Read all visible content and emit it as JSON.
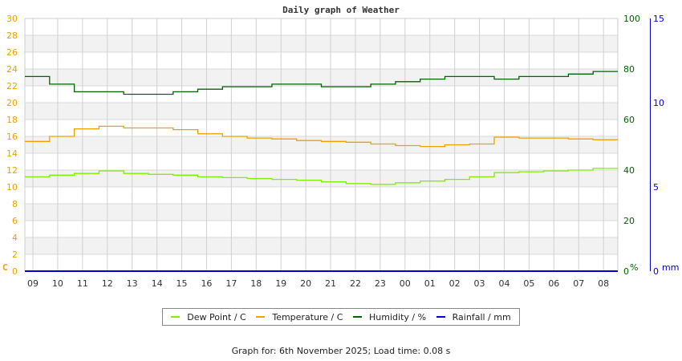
{
  "chart_data": {
    "type": "line",
    "title": "Daily graph of Weather",
    "xlabel": "",
    "x": [
      "09",
      "10",
      "11",
      "12",
      "13",
      "14",
      "15",
      "16",
      "17",
      "18",
      "19",
      "20",
      "21",
      "22",
      "23",
      "00",
      "01",
      "02",
      "03",
      "04",
      "05",
      "06",
      "07",
      "08"
    ],
    "axes": {
      "left": {
        "label": "C",
        "range": [
          0,
          30
        ],
        "ticks": [
          0,
          2,
          4,
          6,
          8,
          10,
          12,
          14,
          16,
          18,
          20,
          22,
          24,
          26,
          28,
          30
        ],
        "color": "#f0a000"
      },
      "right_humidity": {
        "label": "%",
        "range": [
          0,
          100
        ],
        "ticks": [
          0,
          20,
          40,
          60,
          80,
          100
        ],
        "color": "#006400"
      },
      "right_rain": {
        "label": "mm",
        "range": [
          0,
          15
        ],
        "ticks": [
          0,
          5,
          10,
          15
        ],
        "color": "#0000cc"
      }
    },
    "grid": true,
    "legend_position": "bottom",
    "series": [
      {
        "name": "Dew Point / C",
        "color": "#80ee00",
        "axis": "left",
        "values": [
          11.2,
          11.4,
          11.6,
          11.9,
          11.6,
          11.5,
          11.4,
          11.2,
          11.1,
          11.0,
          10.9,
          10.8,
          10.6,
          10.4,
          10.3,
          10.5,
          10.7,
          10.9,
          11.2,
          11.7,
          11.8,
          11.9,
          12.0,
          12.2
        ]
      },
      {
        "name": "Temperature / C",
        "color": "#f0a000",
        "axis": "left",
        "values": [
          15.4,
          16.0,
          16.9,
          17.2,
          17.0,
          17.0,
          16.8,
          16.3,
          16.0,
          15.8,
          15.7,
          15.5,
          15.4,
          15.3,
          15.1,
          14.9,
          14.8,
          15.0,
          15.1,
          15.9,
          15.8,
          15.8,
          15.7,
          15.6
        ]
      },
      {
        "name": "Humidity / %",
        "color": "#006400",
        "axis": "right_humidity",
        "values": [
          77,
          74,
          71,
          71,
          70,
          70,
          71,
          72,
          73,
          73,
          74,
          74,
          73,
          73,
          74,
          75,
          76,
          77,
          77,
          76,
          77,
          77,
          78,
          79
        ]
      },
      {
        "name": "Rainfall / mm",
        "color": "#0000cc",
        "axis": "right_rain",
        "values": [
          0,
          0,
          0,
          0,
          0,
          0,
          0,
          0,
          0,
          0,
          0,
          0,
          0,
          0,
          0,
          0,
          0,
          0,
          0,
          0,
          0,
          0,
          0,
          0
        ]
      }
    ]
  },
  "legend": {
    "items": [
      {
        "label": "Dew Point / C",
        "color": "#80ee00"
      },
      {
        "label": "Temperature / C",
        "color": "#f0a000"
      },
      {
        "label": "Humidity / %",
        "color": "#006400"
      },
      {
        "label": "Rainfall / mm",
        "color": "#0000cc"
      }
    ]
  },
  "footer": {
    "text": "Graph for: 6th November 2025; Load time: 0.08 s"
  }
}
